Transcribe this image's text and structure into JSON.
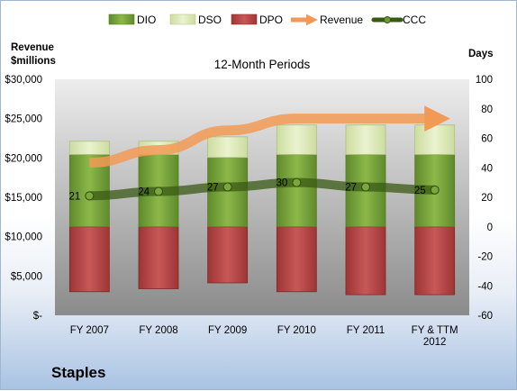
{
  "footer": {
    "company": "Staples"
  },
  "chart_data": {
    "type": "bar",
    "title": "12-Month Periods",
    "left_axis_title": [
      "Revenue",
      "$millions"
    ],
    "right_axis_title": "Days",
    "categories": [
      [
        "FY 2007"
      ],
      [
        "FY 2008"
      ],
      [
        "FY 2009"
      ],
      [
        "FY 2010"
      ],
      [
        "FY 2011"
      ],
      [
        "FY & TTM",
        "2012"
      ]
    ],
    "left_axis": {
      "min": 0,
      "max": 30000,
      "ticks": [
        "$-",
        "$5,000",
        "$10,000",
        "$15,000",
        "$20,000",
        "$25,000",
        "$30,000"
      ]
    },
    "right_axis": {
      "min": -60,
      "max": 100,
      "ticks": [
        "-60",
        "-40",
        "-20",
        "0",
        "20",
        "40",
        "60",
        "80",
        "100"
      ]
    },
    "legend": {
      "position": "top",
      "entries": [
        "DIO",
        "DSO",
        "DPO",
        "Revenue",
        "CCC"
      ]
    },
    "stacked_days": {
      "DIO": [
        49,
        49,
        47,
        49,
        49,
        49
      ],
      "DSO": [
        9,
        9,
        14,
        20,
        20,
        20
      ],
      "DPO": [
        -44,
        -42,
        -38,
        -44,
        -46,
        -46
      ]
    },
    "revenue": [
      19400,
      21000,
      23500,
      25000,
      25000,
      25000
    ],
    "ccc": {
      "values": [
        21,
        24,
        27,
        30,
        27,
        25
      ],
      "labels": [
        "21",
        "24",
        "27",
        "30",
        "27",
        "25"
      ]
    },
    "colors": {
      "DIO": "#77a23c",
      "DSO": "#dbe8b5",
      "DPO": "#b54444",
      "Revenue": "#f29a55",
      "CCC": "#3a5a14",
      "plot_bg_top": "#ededed",
      "plot_bg_bottom": "#8b8b8b"
    },
    "grid": false
  }
}
